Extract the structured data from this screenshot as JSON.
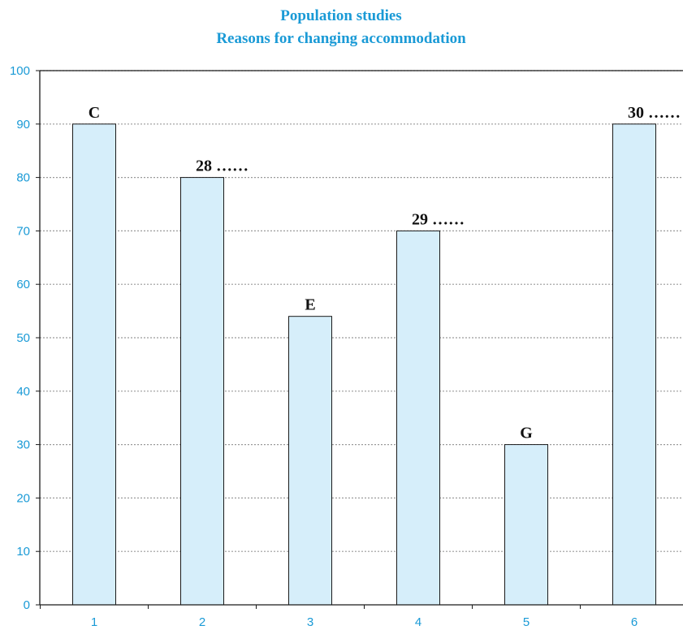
{
  "chart_data": {
    "type": "bar",
    "title": "Population studies",
    "subtitle": "Reasons for changing accommodation",
    "xlabel": "",
    "ylabel": "",
    "categories": [
      "1",
      "2",
      "3",
      "4",
      "5",
      "6"
    ],
    "values": [
      90,
      80,
      54,
      70,
      30,
      90
    ],
    "bar_labels": [
      "C",
      "28 ……",
      "E",
      "29 ……",
      "G",
      "30 ……"
    ],
    "ylim": [
      0,
      100
    ],
    "yticks": [
      "0",
      "10",
      "20",
      "30",
      "40",
      "50",
      "60",
      "70",
      "80",
      "90",
      "100"
    ],
    "grid": true,
    "colors": {
      "text": "#1a9ad6",
      "bar_fill": "#d6eefa",
      "bar_stroke": "#1a1a1a",
      "grid": "#9a9a9a",
      "axis": "#1a1a1a",
      "label": "#111111"
    }
  }
}
